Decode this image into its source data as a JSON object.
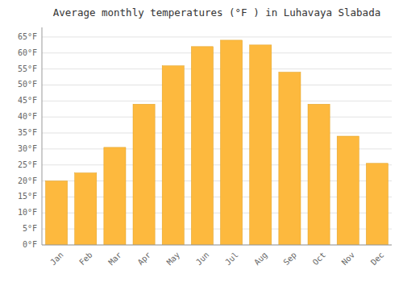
{
  "chart_data": {
    "type": "bar",
    "title": "Average monthly temperatures (°F ) in Luhavaya Slabada",
    "categories": [
      "Jan",
      "Feb",
      "Mar",
      "Apr",
      "May",
      "Jun",
      "Jul",
      "Aug",
      "Sep",
      "Oct",
      "Nov",
      "Dec"
    ],
    "values": [
      20,
      22.5,
      30.5,
      44,
      56,
      62,
      64,
      62.5,
      54,
      44,
      34,
      25.5
    ],
    "color": "#FDB93E",
    "ylim": [
      0,
      68
    ],
    "yticks": [
      {
        "value": 0,
        "label": "0°F"
      },
      {
        "value": 5,
        "label": "5°F"
      },
      {
        "value": 10,
        "label": "10°F"
      },
      {
        "value": 15,
        "label": "15°F"
      },
      {
        "value": 20,
        "label": "20°F"
      },
      {
        "value": 25,
        "label": "25°F"
      },
      {
        "value": 30,
        "label": "30°F"
      },
      {
        "value": 35,
        "label": "35°F"
      },
      {
        "value": 40,
        "label": "40°F"
      },
      {
        "value": 45,
        "label": "45°F"
      },
      {
        "value": 50,
        "label": "50°F"
      },
      {
        "value": 55,
        "label": "55°F"
      },
      {
        "value": 60,
        "label": "60°F"
      },
      {
        "value": 65,
        "label": "65°F"
      }
    ],
    "grid": true
  }
}
